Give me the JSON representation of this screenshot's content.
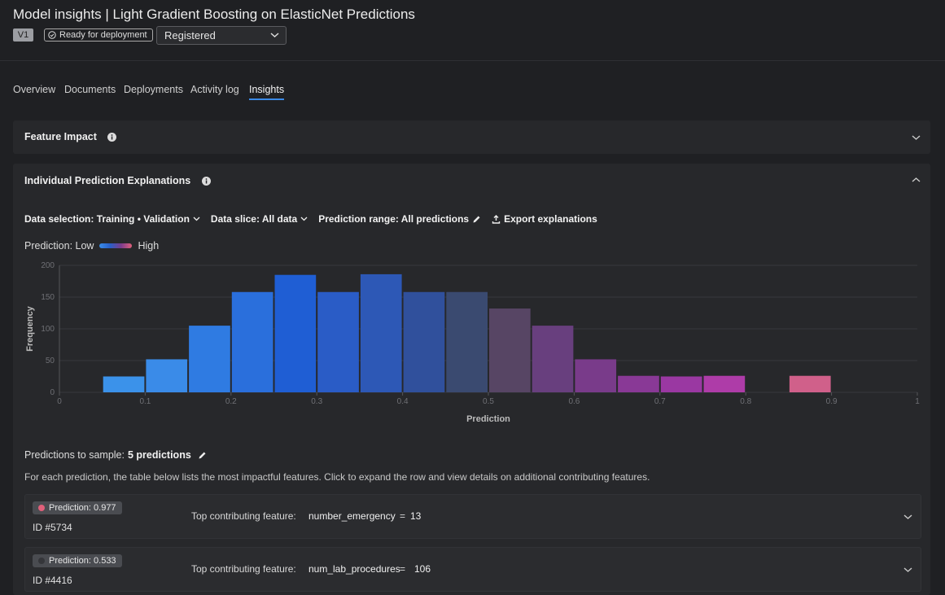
{
  "header": {
    "title": "Model insights | Light Gradient Boosting on ElasticNet Predictions",
    "version": "V1",
    "status": "Ready for deployment",
    "stage": "Registered"
  },
  "tabs": [
    "Overview",
    "Documents",
    "Deployments",
    "Activity log",
    "Insights"
  ],
  "active_tab": 4,
  "panels": {
    "feature_impact": "Feature Impact",
    "explanations": "Individual Prediction Explanations"
  },
  "filters": {
    "data_selection": "Data selection: Training • Validation",
    "data_slice": "Data slice: All data",
    "prediction_range": "Prediction range: All predictions",
    "export": "Export explanations"
  },
  "legend": {
    "low": "Prediction: Low",
    "high": "High"
  },
  "chart_data": {
    "type": "histogram",
    "xlabel": "Prediction",
    "ylabel": "Frequency",
    "bins": [
      0.05,
      0.1,
      0.15,
      0.2,
      0.25,
      0.3,
      0.35,
      0.4,
      0.45,
      0.5,
      0.55,
      0.6,
      0.65,
      0.7,
      0.75,
      0.8,
      0.85,
      0.9
    ],
    "values": [
      25,
      52,
      105,
      158,
      185,
      158,
      186,
      158,
      158,
      132,
      105,
      52,
      26,
      25,
      26,
      0,
      26
    ],
    "colors": [
      "#3b92ea",
      "#3a8be8",
      "#2f7be2",
      "#2a6fdc",
      "#1f5ed4",
      "#2a5cc6",
      "#2d58b6",
      "#30509c",
      "#3a4a70",
      "#574564",
      "#683f7e",
      "#793b8a",
      "#893996",
      "#9a38a2",
      "#ae3ca8",
      "#b8449e",
      "#d0608a"
    ],
    "xlim": [
      0,
      1
    ],
    "ylim": [
      0,
      200
    ],
    "xticks": [
      0,
      0.1,
      0.2,
      0.3,
      0.4,
      0.5,
      0.6,
      0.7,
      0.8,
      0.9,
      1
    ],
    "yticks": [
      0,
      50,
      100,
      150,
      200
    ],
    "grid": true
  },
  "sample": {
    "label": "Predictions to sample:",
    "value": "5 predictions",
    "description": "For each prediction, the table below lists the most impactful features. Click to expand the row and view details on additional contributing features."
  },
  "rows": [
    {
      "prediction": "Prediction: 0.977",
      "id": "ID #5734",
      "feature_label": "Top contributing feature:",
      "feature": "number_emergency",
      "eq": "=",
      "value": 13,
      "color": "#e0607a"
    },
    {
      "prediction": "Prediction: 0.533",
      "id": "ID #4416",
      "feature_label": "Top contributing feature:",
      "feature": "num_lab_procedures",
      "eq": "=",
      "value": 106,
      "color": "#35363a"
    }
  ]
}
